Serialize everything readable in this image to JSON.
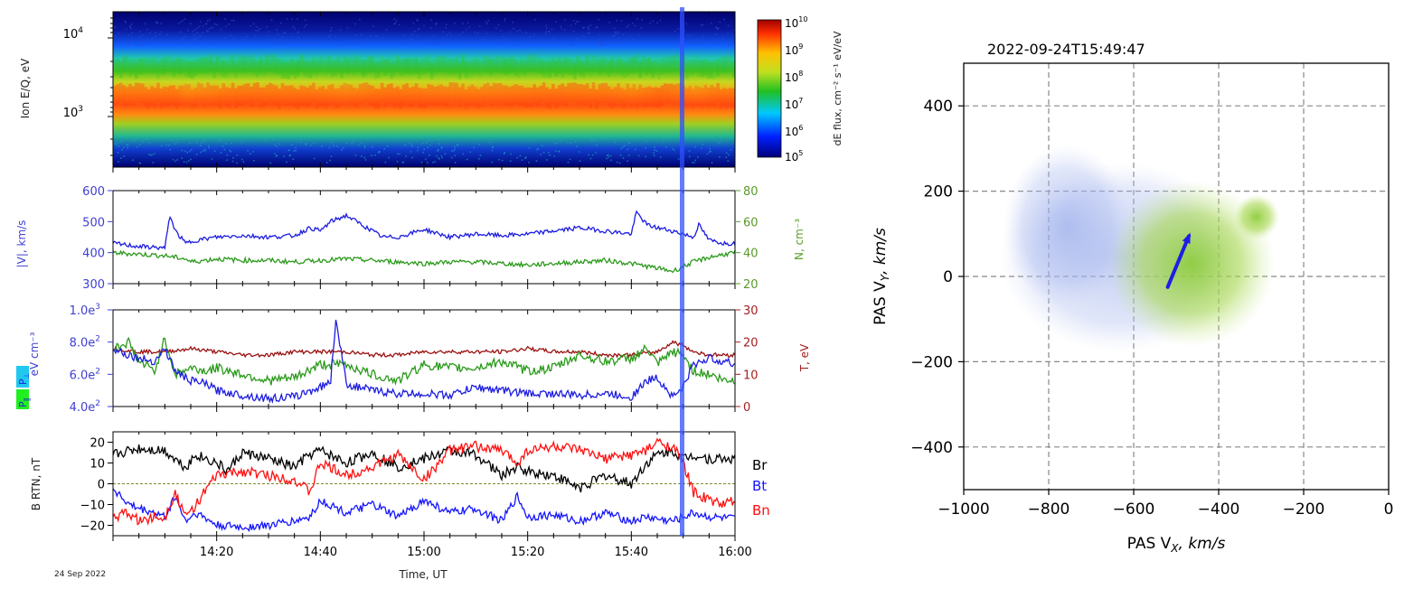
{
  "date_label": "24 Sep 2022",
  "colors": {
    "v_blue": "#3f3fd0",
    "n_green": "#5a9a2a",
    "t_red": "#a52020",
    "trace_blue": "#1c1ce0",
    "trace_green": "#2a9a1a",
    "trace_darkred": "#9a1010",
    "br": "#000000",
    "bt": "#1515ff",
    "bn": "#ff1010",
    "highlight": "#2f4fff",
    "arrow": "#1e1ee6"
  },
  "chart_data": [
    {
      "type": "heatmap",
      "name": "ion-spectrogram",
      "ylabel": "Ion E/Q, eV",
      "yscale": "log",
      "yticks": [
        {
          "value": 10000,
          "base": "10",
          "exp": "4"
        },
        {
          "value": 1000,
          "base": "10",
          "exp": "3"
        }
      ],
      "colorbar": {
        "label": "dE flux, cm⁻² s⁻¹ eV/eV",
        "ticks": [
          {
            "base": "10",
            "exp": "10"
          },
          {
            "base": "10",
            "exp": "9"
          },
          {
            "base": "10",
            "exp": "8"
          },
          {
            "base": "10",
            "exp": "7"
          },
          {
            "base": "10",
            "exp": "6"
          },
          {
            "base": "10",
            "exp": "5"
          }
        ]
      },
      "x_range_ut": [
        "14:00",
        "16:00"
      ],
      "peak_energy_ev": 1100
    },
    {
      "type": "line",
      "name": "speed-density",
      "ylabel_left": "|V|, km/s",
      "ylabel_right": "N, cm⁻³",
      "left_ticks": [
        "600",
        "500",
        "400",
        "300"
      ],
      "right_ticks": [
        "80",
        "60",
        "40",
        "20"
      ],
      "ylim_left": [
        300,
        600
      ],
      "ylim_right": [
        20,
        80
      ],
      "series": [
        {
          "name": "|V|",
          "axis": "left",
          "color": "#1c1ce0",
          "x": [
            0,
            5,
            10,
            11,
            12,
            14,
            16,
            20,
            25,
            30,
            35,
            38,
            40,
            42,
            45,
            50,
            52,
            55,
            60,
            65,
            70,
            75,
            80,
            85,
            90,
            95,
            100,
            101,
            103,
            105,
            108,
            110,
            112,
            113,
            115,
            118,
            120
          ],
          "y": [
            430,
            420,
            415,
            520,
            470,
            430,
            440,
            450,
            455,
            450,
            455,
            480,
            470,
            500,
            520,
            470,
            450,
            450,
            475,
            450,
            460,
            455,
            460,
            470,
            480,
            470,
            460,
            530,
            490,
            480,
            470,
            460,
            450,
            490,
            440,
            430,
            430
          ]
        },
        {
          "name": "N",
          "axis": "right",
          "color": "#2a9a1a",
          "x": [
            0,
            5,
            10,
            14,
            15,
            20,
            25,
            30,
            35,
            40,
            45,
            50,
            55,
            60,
            65,
            70,
            75,
            80,
            85,
            90,
            95,
            100,
            105,
            108,
            110,
            112,
            115,
            118,
            120
          ],
          "y": [
            40,
            39,
            38,
            36,
            34,
            36,
            35,
            35,
            34,
            35,
            36,
            35,
            34,
            33,
            34,
            34,
            33,
            32,
            33,
            34,
            35,
            33,
            30,
            28,
            31,
            34,
            37,
            39,
            40
          ]
        }
      ]
    },
    {
      "type": "line",
      "name": "pressure-temperature",
      "ylabel_left": "eV cm⁻³",
      "ylabel_right": "T, eV",
      "left_ticks": [
        "1.0e",
        "8.0e",
        "6.0e",
        "4.0e"
      ],
      "left_tick_exps": [
        "3",
        "2",
        "2",
        "2"
      ],
      "right_ticks": [
        "30",
        "20",
        "10",
        "0"
      ],
      "legend_left": [
        {
          "label": "P",
          "sub": "⊥",
          "color": "#20c8f0"
        },
        {
          "label": "P",
          "sub": "‖",
          "color": "#20f020"
        }
      ],
      "ylim_left": [
        400,
        1000
      ],
      "ylim_right": [
        0,
        30
      ],
      "series": [
        {
          "name": "P perp",
          "axis": "left",
          "color": "#1c1ce0",
          "x": [
            0,
            3,
            5,
            8,
            10,
            12,
            15,
            18,
            20,
            25,
            30,
            35,
            40,
            42,
            43,
            45,
            50,
            55,
            60,
            65,
            70,
            75,
            80,
            85,
            90,
            95,
            100,
            103,
            105,
            108,
            110,
            112,
            115,
            118,
            120
          ],
          "y": [
            760,
            720,
            700,
            680,
            760,
            620,
            560,
            540,
            500,
            470,
            450,
            460,
            520,
            560,
            950,
            540,
            500,
            480,
            480,
            470,
            520,
            500,
            480,
            480,
            470,
            480,
            460,
            560,
            580,
            460,
            520,
            660,
            700,
            680,
            660
          ]
        },
        {
          "name": "P par",
          "axis": "left",
          "color": "#2a9a1a",
          "x": [
            0,
            3,
            5,
            8,
            10,
            12,
            15,
            18,
            20,
            25,
            30,
            35,
            40,
            45,
            50,
            55,
            60,
            65,
            70,
            75,
            80,
            85,
            90,
            95,
            100,
            103,
            105,
            108,
            110,
            112,
            115,
            118,
            120
          ],
          "y": [
            760,
            800,
            680,
            620,
            820,
            600,
            640,
            620,
            640,
            600,
            560,
            580,
            660,
            660,
            600,
            560,
            660,
            640,
            640,
            680,
            620,
            640,
            720,
            680,
            700,
            760,
            660,
            740,
            720,
            620,
            600,
            560,
            560
          ]
        },
        {
          "name": "T",
          "axis": "right",
          "color": "#9a1010",
          "x": [
            0,
            5,
            10,
            15,
            20,
            25,
            30,
            35,
            40,
            45,
            50,
            55,
            60,
            65,
            70,
            75,
            80,
            85,
            90,
            95,
            100,
            105,
            108,
            110,
            112,
            115,
            120
          ],
          "y": [
            18,
            17,
            17,
            18,
            17,
            16,
            16,
            17,
            17,
            17,
            16,
            16,
            17,
            17,
            17,
            17,
            18,
            17,
            17,
            16,
            16,
            17,
            20,
            19,
            17,
            16,
            16
          ]
        }
      ]
    },
    {
      "type": "line",
      "name": "magnetic-field",
      "ylabel": "B RTN, nT",
      "yticks": [
        "20",
        "10",
        "0",
        "−10",
        "−20"
      ],
      "ylim": [
        -25,
        25
      ],
      "x_ticks": [
        "14:20",
        "14:40",
        "15:00",
        "15:20",
        "15:40",
        "16:00"
      ],
      "xlabel": "Time, UT",
      "legend": [
        {
          "label": "Br",
          "color": "#000000"
        },
        {
          "label": "Bt",
          "color": "#1515ff"
        },
        {
          "label": "Bn",
          "color": "#ff1010"
        }
      ],
      "series": [
        {
          "name": "Br",
          "color": "#000000",
          "x": [
            0,
            5,
            10,
            12,
            14,
            16,
            20,
            22,
            25,
            30,
            35,
            38,
            40,
            45,
            50,
            55,
            60,
            65,
            70,
            75,
            78,
            80,
            85,
            90,
            95,
            100,
            103,
            105,
            108,
            110,
            112,
            115,
            120
          ],
          "y": [
            14,
            17,
            16,
            12,
            8,
            14,
            10,
            6,
            15,
            12,
            8,
            14,
            16,
            10,
            15,
            8,
            12,
            16,
            14,
            4,
            8,
            6,
            4,
            -2,
            4,
            0,
            10,
            14,
            16,
            12,
            14,
            12,
            12
          ]
        },
        {
          "name": "Bt",
          "color": "#1515ff",
          "x": [
            0,
            3,
            5,
            8,
            10,
            12,
            14,
            16,
            20,
            25,
            30,
            35,
            38,
            40,
            45,
            50,
            55,
            60,
            65,
            70,
            75,
            78,
            80,
            85,
            90,
            95,
            100,
            103,
            105,
            108,
            110,
            112,
            115,
            120
          ],
          "y": [
            -2,
            -10,
            -12,
            -14,
            -16,
            -6,
            -18,
            -14,
            -20,
            -21,
            -20,
            -18,
            -16,
            -8,
            -14,
            -10,
            -16,
            -8,
            -14,
            -12,
            -18,
            -6,
            -16,
            -15,
            -18,
            -14,
            -18,
            -16,
            -17,
            -18,
            -16,
            -14,
            -16,
            -17
          ]
        },
        {
          "name": "Bn",
          "color": "#ff1010",
          "x": [
            0,
            3,
            5,
            8,
            10,
            12,
            14,
            16,
            20,
            25,
            30,
            35,
            38,
            40,
            45,
            50,
            55,
            60,
            65,
            70,
            75,
            78,
            80,
            85,
            90,
            95,
            100,
            103,
            105,
            108,
            110,
            112,
            115,
            118,
            120
          ],
          "y": [
            -16,
            -14,
            -18,
            -16,
            -16,
            -4,
            -16,
            -10,
            4,
            6,
            4,
            2,
            -4,
            10,
            4,
            8,
            14,
            2,
            16,
            18,
            16,
            10,
            16,
            18,
            16,
            12,
            14,
            16,
            20,
            18,
            10,
            -4,
            -8,
            -10,
            -8
          ]
        }
      ]
    },
    {
      "type": "heatmap",
      "name": "velocity-distribution",
      "title": "2022-09-24T15:49:47",
      "xlabel": "PAS V",
      "xlabel_sub": "X",
      "xlabel_unit": ", km/s",
      "ylabel": "PAS V",
      "ylabel_sub": "Y",
      "ylabel_unit": ", km/s",
      "xlim": [
        -1000,
        0
      ],
      "ylim": [
        -500,
        500
      ],
      "xticks": [
        "−1000",
        "−800",
        "−600",
        "−400",
        "−200",
        "0"
      ],
      "yticks": [
        "400",
        "200",
        "0",
        "−200",
        "−400"
      ],
      "peak": {
        "vx": -520,
        "vy": -40
      },
      "bulk_velocity_arrow": {
        "from": [
          -520,
          -25
        ],
        "to": [
          -470,
          95
        ]
      }
    }
  ]
}
